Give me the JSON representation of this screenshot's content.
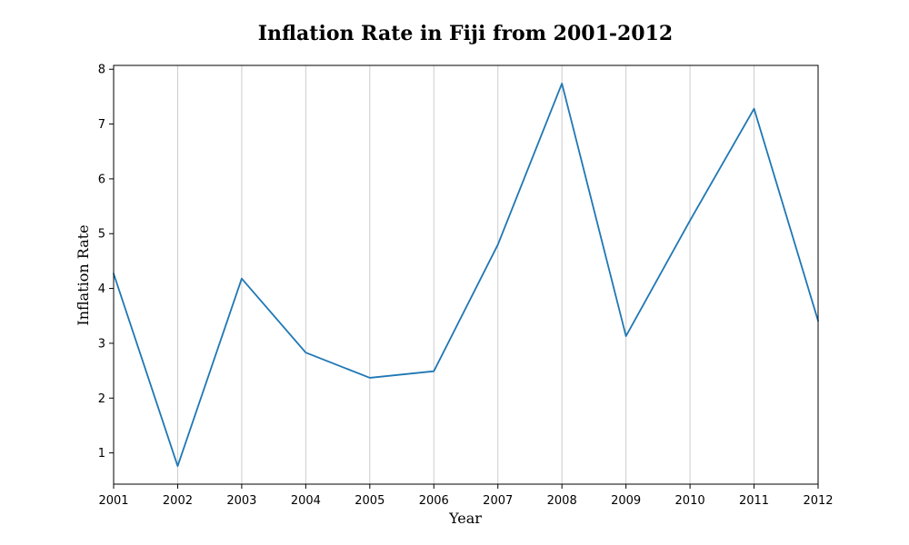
{
  "chart_data": {
    "type": "line",
    "title": "Inflation Rate in Fiji from 2001-2012",
    "xlabel": "Year",
    "ylabel": "Inflation Rate",
    "x": [
      "2001",
      "2002",
      "2003",
      "2004",
      "2005",
      "2006",
      "2007",
      "2008",
      "2009",
      "2010",
      "2011",
      "2012"
    ],
    "series": [
      {
        "values": [
          4.27,
          0.76,
          4.18,
          2.83,
          2.37,
          2.49,
          4.8,
          7.74,
          3.13,
          5.24,
          7.28,
          3.41
        ],
        "color": "#1f77b4"
      }
    ],
    "xlim": [
      "2001",
      "2012"
    ],
    "ylim": [
      0.43,
      8.07
    ],
    "yticks": [
      1,
      2,
      3,
      4,
      5,
      6,
      7,
      8
    ],
    "grid": "vertical",
    "legend": "none"
  }
}
